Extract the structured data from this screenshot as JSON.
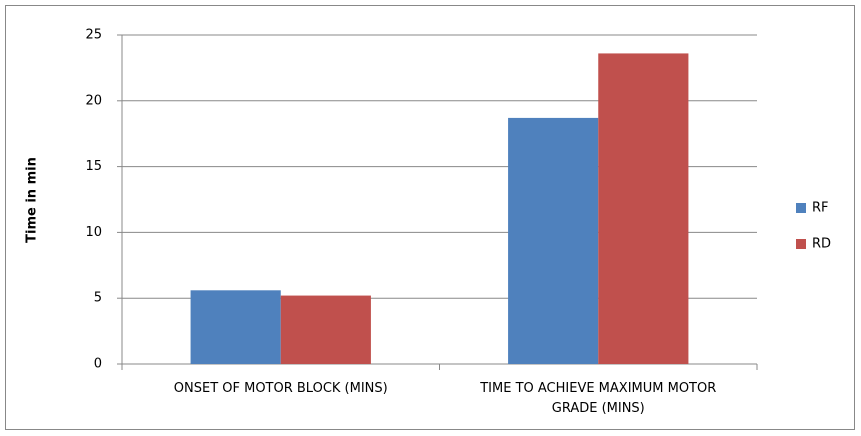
{
  "chart_data": {
    "type": "bar",
    "y_label": "Time in min",
    "categories": [
      "ONSET OF MOTOR BLOCK (MINS)",
      "TIME TO ACHIEVE MAXIMUM MOTOR GRADE (MINS)"
    ],
    "series": [
      {
        "name": "RF",
        "color": "#4f81bd",
        "values": [
          5.6,
          18.7
        ]
      },
      {
        "name": "RD",
        "color": "#c0504d",
        "values": [
          5.2,
          23.6
        ]
      }
    ],
    "ylim": [
      0,
      25
    ],
    "yticks": [
      0,
      5,
      10,
      15,
      20,
      25
    ],
    "grid": true,
    "legend": "right"
  }
}
